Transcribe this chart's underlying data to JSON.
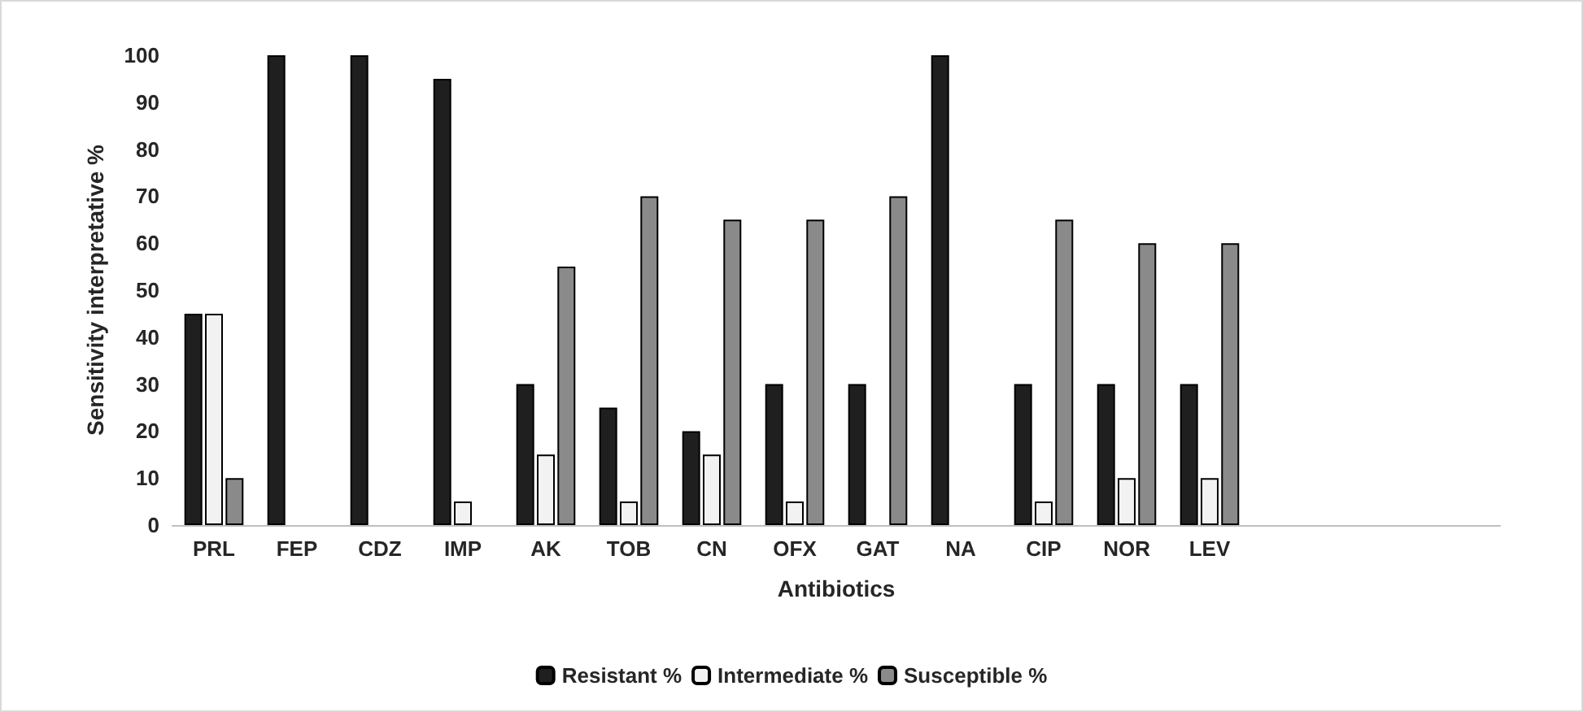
{
  "chart_data": {
    "type": "bar",
    "xlabel": "Antibiotics",
    "ylabel": "Sensitivity interpretative %",
    "categories": [
      "PRL",
      "FEP",
      "CDZ",
      "IMP",
      "AK",
      "TOB",
      "CN",
      "OFX",
      "GAT",
      "NA",
      "CIP",
      "NOR",
      "LEV",
      null,
      null,
      null
    ],
    "series": [
      {
        "name": "Resistant %",
        "color": "#1f1f1f",
        "values": [
          45,
          100,
          100,
          95,
          30,
          25,
          20,
          30,
          30,
          100,
          30,
          30,
          30,
          null,
          null,
          null
        ]
      },
      {
        "name": "Intermediate %",
        "color": "#f2f2f2",
        "values": [
          45,
          0,
          0,
          5,
          15,
          5,
          15,
          5,
          0,
          0,
          5,
          10,
          10,
          null,
          null,
          null
        ]
      },
      {
        "name": "Susceptible %",
        "color": "#8a8a8a",
        "values": [
          10,
          0,
          0,
          0,
          55,
          70,
          65,
          65,
          70,
          0,
          65,
          60,
          60,
          null,
          null,
          null
        ]
      }
    ],
    "ylim": [
      0,
      100
    ],
    "yticks": [
      0,
      10,
      20,
      30,
      40,
      50,
      60,
      70,
      80,
      90,
      100
    ],
    "grid": false,
    "legend": "bottom"
  }
}
